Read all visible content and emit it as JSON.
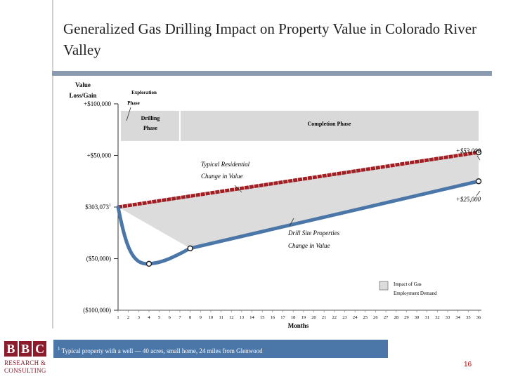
{
  "title": "Generalized Gas Drilling Impact on Property Value in Colorado River Valley",
  "logo": {
    "letters": [
      "B",
      "B",
      "C"
    ],
    "line1": "RESEARCH &",
    "line2": "CONSULTING"
  },
  "page_number": "16",
  "footnote": {
    "marker": "1",
    "text": "Typical property with a well — 40 acres, small home, 24 miles from Glenwood"
  },
  "colors": {
    "residential": "#a31e22",
    "drill_site": "#4a76a8",
    "band": "#dcdcdc",
    "phase_box": "#d9d9d9",
    "footnote_bg": "#4a76a8"
  },
  "chart_data": {
    "type": "line",
    "title": "Generalized Gas Drilling Impact on Property Value in Colorado River Valley",
    "ylabel": "Value Loss/Gain",
    "xlabel": "Months",
    "x_ticks": [
      "1",
      "2",
      "3",
      "4",
      "5",
      "6",
      "7",
      "8",
      "9",
      "10",
      "11",
      "12",
      "13",
      "14",
      "15",
      "16",
      "17",
      "18",
      "19",
      "20",
      "21",
      "22",
      "23",
      "24",
      "25",
      "26",
      "27",
      "28",
      "29",
      "30",
      "31",
      "32",
      "33",
      "34",
      "35",
      "36"
    ],
    "y_ticks": [
      {
        "value": 100000,
        "label": "+$100,000"
      },
      {
        "value": 50000,
        "label": "+$50,000"
      },
      {
        "value": 0,
        "label": "$303,073"
      },
      {
        "value": -50000,
        "label": "($50,000)"
      },
      {
        "value": -100000,
        "label": "($100,000)"
      }
    ],
    "baseline_marker": "1",
    "xlim": [
      1,
      36
    ],
    "series": [
      {
        "name": "Typical Residential Change in Value",
        "label_line1": "Typical Residential",
        "label_line2": "Change in Value",
        "points": [
          [
            1,
            0
          ],
          [
            36,
            53000
          ]
        ],
        "end_label": "+$53,000",
        "markers": [
          36
        ]
      },
      {
        "name": "Drill Site Properties Change in Value",
        "label_line1": "Drill Site Properties",
        "label_line2": "Change in Value",
        "points": [
          [
            1,
            0
          ],
          [
            2,
            -36000
          ],
          [
            3,
            -51000
          ],
          [
            4,
            -55000
          ],
          [
            5,
            -54000
          ],
          [
            6,
            -50000
          ],
          [
            7,
            -46000
          ],
          [
            8,
            -40000
          ],
          [
            36,
            25000
          ]
        ],
        "end_label": "+$25,000",
        "markers": [
          4,
          8,
          36
        ]
      }
    ],
    "band": {
      "name": "Impact of Gas Employment Demand",
      "legend_line1": "Impact of Gas",
      "legend_line2": "Employment Demand",
      "from_x": 1,
      "to_x": 36
    },
    "phases": [
      {
        "name": "Exploration Phase",
        "line1": "Exploration",
        "line2": "Phase"
      },
      {
        "name": "Drilling Phase",
        "line1": "Drilling",
        "line2": "Phase",
        "from_month": 1,
        "to_month": 7
      },
      {
        "name": "Completion Phase",
        "line1": "Completion Phase",
        "from_month": 7,
        "to_month": 36
      }
    ]
  }
}
